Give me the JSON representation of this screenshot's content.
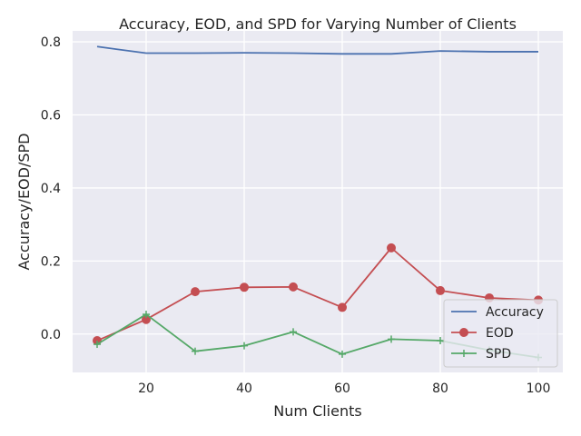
{
  "chart_data": {
    "type": "line",
    "title": "Accuracy, EOD, and SPD for Varying Number of Clients",
    "xlabel": "Num Clients",
    "ylabel": "Accuracy/EOD/SPD",
    "x": [
      10,
      20,
      30,
      40,
      50,
      60,
      70,
      80,
      90,
      100
    ],
    "xlim": [
      5,
      105
    ],
    "ylim": [
      -0.105,
      0.83
    ],
    "xticks": [
      20,
      40,
      60,
      80,
      100
    ],
    "yticks": [
      0.0,
      0.2,
      0.4,
      0.6,
      0.8
    ],
    "xtick_labels": [
      "20",
      "40",
      "60",
      "80",
      "100"
    ],
    "ytick_labels": [
      "0.0",
      "0.2",
      "0.4",
      "0.6",
      "0.8"
    ],
    "grid": true,
    "legend_position": "lower-right",
    "series": [
      {
        "name": "Accuracy",
        "color": "#4c72b0",
        "marker": "none",
        "values": [
          0.787,
          0.769,
          0.769,
          0.77,
          0.769,
          0.767,
          0.767,
          0.775,
          0.773,
          0.773
        ]
      },
      {
        "name": "EOD",
        "color": "#c44e52",
        "marker": "circle",
        "values": [
          -0.018,
          0.04,
          0.116,
          0.128,
          0.129,
          0.073,
          0.236,
          0.119,
          0.099,
          0.093
        ]
      },
      {
        "name": "SPD",
        "color": "#55a868",
        "marker": "plus",
        "values": [
          -0.028,
          0.054,
          -0.047,
          -0.032,
          0.006,
          -0.055,
          -0.014,
          -0.018,
          -0.044,
          -0.064
        ]
      }
    ]
  }
}
